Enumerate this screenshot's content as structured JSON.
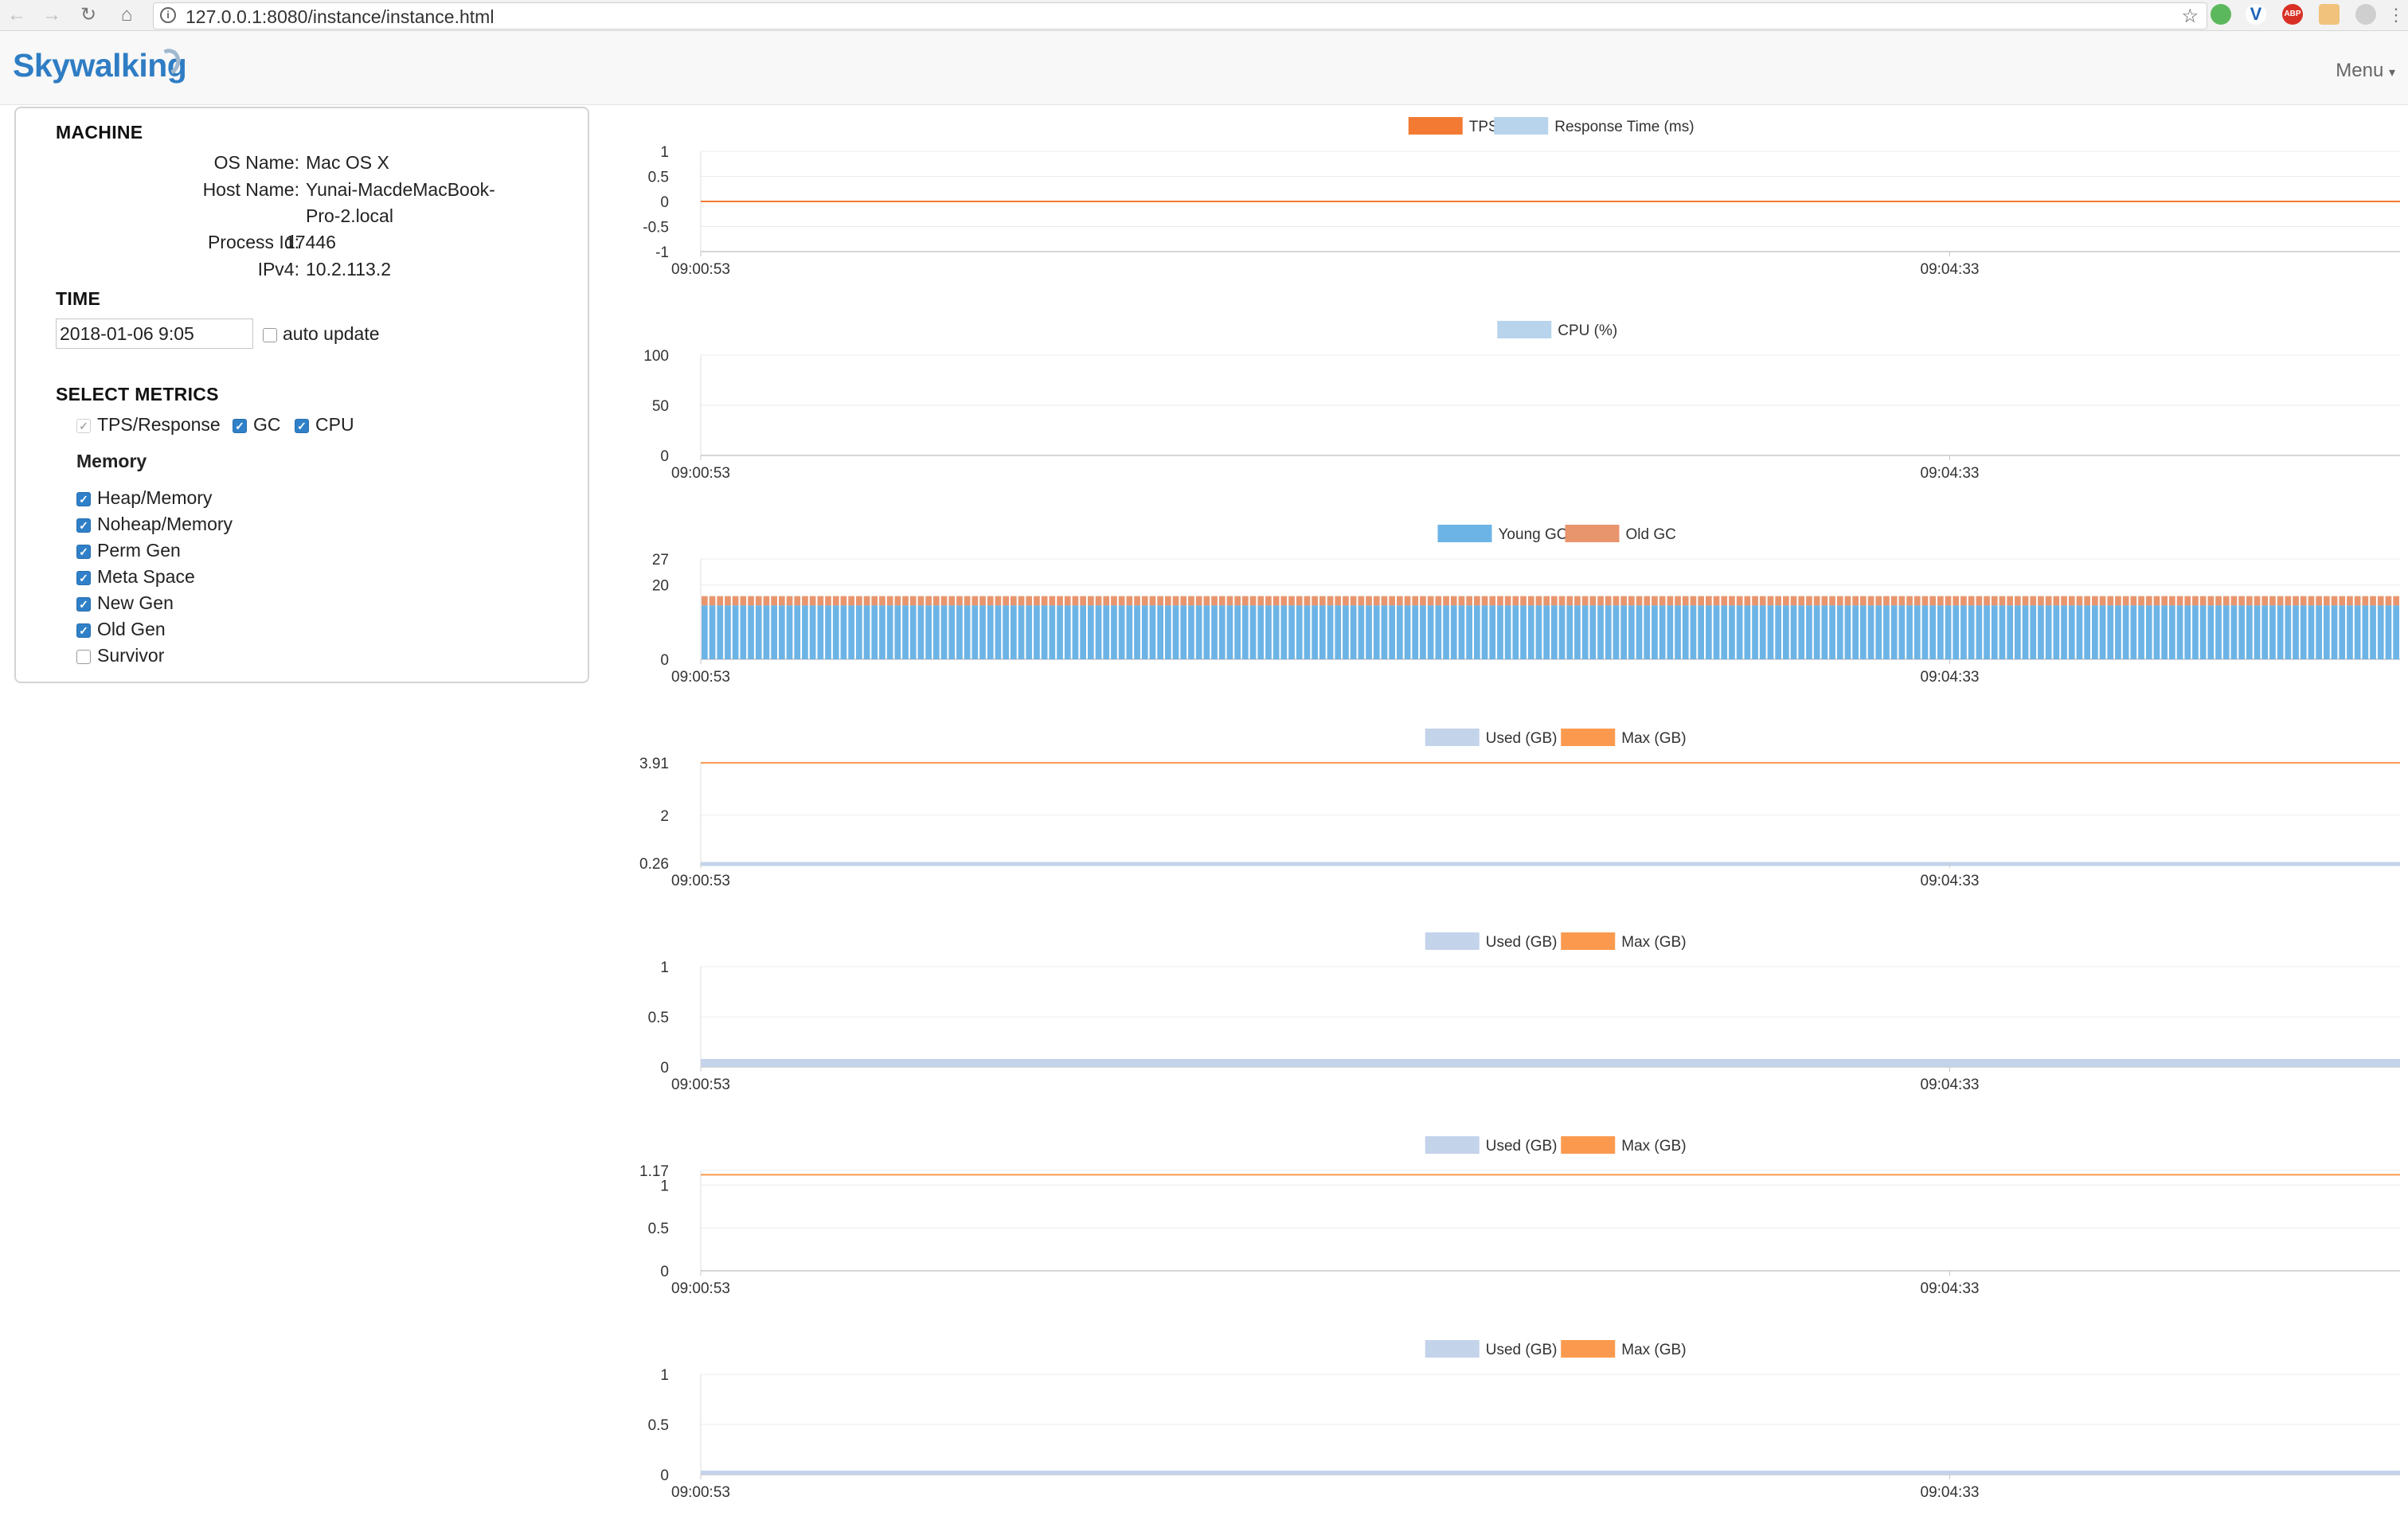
{
  "browser": {
    "url": "127.0.0.1:8080/instance/instance.html",
    "ext_abp": "ABP"
  },
  "header": {
    "logo": "Skywalking",
    "menu_label": "Menu"
  },
  "machine": {
    "title": "MACHINE",
    "os_label": "OS Name:",
    "os_value": "Mac OS X",
    "host_label": "Host Name:",
    "host_value": "Yunai-MacdeMacBook-Pro-2.local",
    "pid_label": "Process Id:",
    "pid_value": "17446",
    "ipv4_label": "IPv4:",
    "ipv4_value": "10.2.113.2"
  },
  "time": {
    "title": "TIME",
    "value": "2018-01-06 9:05",
    "auto_update_label": "auto update"
  },
  "metrics": {
    "title": "SELECT METRICS",
    "tps_label": "TPS/Response",
    "gc_label": "GC",
    "cpu_label": "CPU",
    "memory_title": "Memory",
    "memory_items": [
      {
        "label": "Heap/Memory",
        "checked": true
      },
      {
        "label": "Noheap/Memory",
        "checked": true
      },
      {
        "label": "Perm Gen",
        "checked": true
      },
      {
        "label": "Meta Space",
        "checked": true
      },
      {
        "label": "New Gen",
        "checked": true
      },
      {
        "label": "Old Gen",
        "checked": true
      },
      {
        "label": "Survivor",
        "checked": false
      }
    ]
  },
  "colors": {
    "orange": "#f27a33",
    "lightblue": "#b8d4ec",
    "gcblue": "#6cb4e6",
    "gcorange": "#e8956e",
    "memblue": "#c3d3ea",
    "memorange": "#fb9a4f"
  },
  "chart_data": [
    {
      "type": "line",
      "legend": [
        "TPS",
        "Response Time (ms)"
      ],
      "x_ticks": [
        "09:00:53",
        "09:04:33"
      ],
      "y_ticks": [
        "1",
        "0.5",
        "0",
        "-0.5",
        "-1"
      ],
      "ylim": [
        -1,
        1
      ],
      "series": [
        {
          "name": "TPS",
          "values": [
            0,
            0
          ]
        },
        {
          "name": "Response Time (ms)",
          "values": [
            0,
            0
          ]
        }
      ],
      "grid": true,
      "legend_placement": "top-center"
    },
    {
      "type": "area",
      "legend": [
        "CPU (%)"
      ],
      "x_ticks": [
        "09:00:53",
        "09:04:33"
      ],
      "y_ticks": [
        "100",
        "50",
        "0"
      ],
      "ylim": [
        0,
        100
      ],
      "series": [
        {
          "name": "CPU (%)",
          "values": [
            0,
            0
          ]
        }
      ],
      "grid": true,
      "legend_placement": "top-center"
    },
    {
      "type": "bar",
      "stacked": true,
      "legend": [
        "Young GC",
        "Old GC"
      ],
      "x_ticks": [
        "09:00:53",
        "09:04:33"
      ],
      "y_ticks": [
        "27",
        "20",
        "0"
      ],
      "ylim": [
        0,
        27
      ],
      "bar_count": 220,
      "series": [
        {
          "name": "Young GC",
          "value": 14.5
        },
        {
          "name": "Old GC",
          "value": 2.5
        }
      ],
      "grid": true,
      "legend_placement": "top-center"
    },
    {
      "type": "area",
      "legend": [
        "Used (GB)",
        "Max (GB)"
      ],
      "x_ticks": [
        "09:00:53",
        "09:04:33"
      ],
      "y_ticks": [
        "3.91",
        "2",
        "0.26"
      ],
      "ylim": [
        0.26,
        3.91
      ],
      "series": [
        {
          "name": "Used (GB)",
          "values": [
            0.3,
            0.3
          ]
        },
        {
          "name": "Max (GB)",
          "values": [
            3.91,
            3.91
          ]
        }
      ],
      "grid": true,
      "legend_placement": "top-center"
    },
    {
      "type": "area",
      "legend": [
        "Used (GB)",
        "Max (GB)"
      ],
      "x_ticks": [
        "09:00:53",
        "09:04:33"
      ],
      "y_ticks": [
        "1",
        "0.5",
        "0"
      ],
      "ylim": [
        0,
        1
      ],
      "series": [
        {
          "name": "Used (GB)",
          "values": [
            0.08,
            0.08
          ]
        },
        {
          "name": "Max (GB)",
          "values": [
            0,
            0
          ]
        }
      ],
      "grid": true,
      "legend_placement": "top-center"
    },
    {
      "type": "area",
      "legend": [
        "Used (GB)",
        "Max (GB)"
      ],
      "x_ticks": [
        "09:00:53",
        "09:04:33"
      ],
      "y_ticks": [
        "1.17",
        "1",
        "0.5",
        "0"
      ],
      "ylim": [
        0,
        1.17
      ],
      "series": [
        {
          "name": "Used (GB)",
          "values": [
            0,
            0
          ]
        },
        {
          "name": "Max (GB)",
          "values": [
            1.12,
            1.12
          ]
        }
      ],
      "grid": true,
      "legend_placement": "top-center"
    },
    {
      "type": "area",
      "legend": [
        "Used (GB)",
        "Max (GB)"
      ],
      "x_ticks": [
        "09:00:53",
        "09:04:33"
      ],
      "y_ticks": [
        "1",
        "0.5",
        "0"
      ],
      "ylim": [
        0,
        1
      ],
      "series": [
        {
          "name": "Used (GB)",
          "values": [
            0.04,
            0.04
          ]
        },
        {
          "name": "Max (GB)",
          "values": [
            0,
            0
          ]
        }
      ],
      "grid": true,
      "legend_placement": "top-center"
    }
  ]
}
